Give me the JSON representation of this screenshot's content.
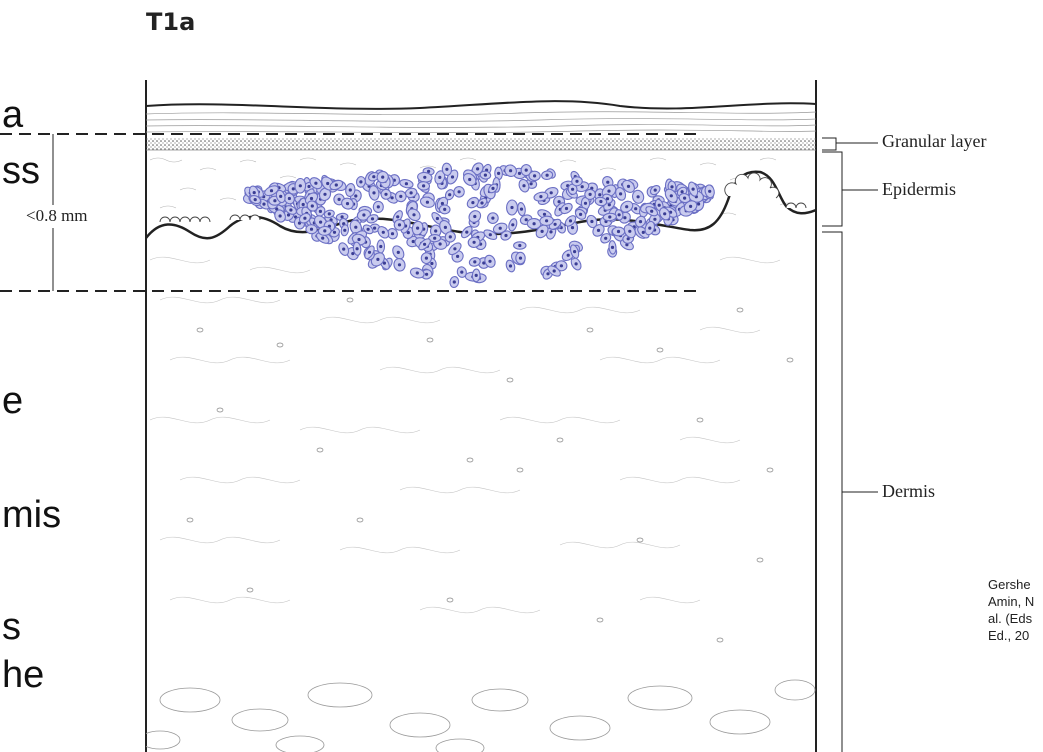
{
  "figure": {
    "title": "T1a",
    "measurement": "<0.8 mm",
    "labels": {
      "granular": "Granular layer",
      "epidermis": "Epidermis",
      "dermis": "Dermis"
    }
  },
  "slide_text_fragments": [
    "a",
    "ss",
    "e",
    "mis",
    "s",
    "he"
  ],
  "citation": [
    "Gershe",
    "Amin, N",
    "al. (Eds",
    "Ed., 20"
  ],
  "colors": {
    "tumor_cells": "#6b6fc4",
    "tumor_cell_fill": "#c9cbee",
    "tumor_nucleus": "#3a3d94",
    "line": "#222222",
    "granular_band": "#9a9a9a"
  }
}
